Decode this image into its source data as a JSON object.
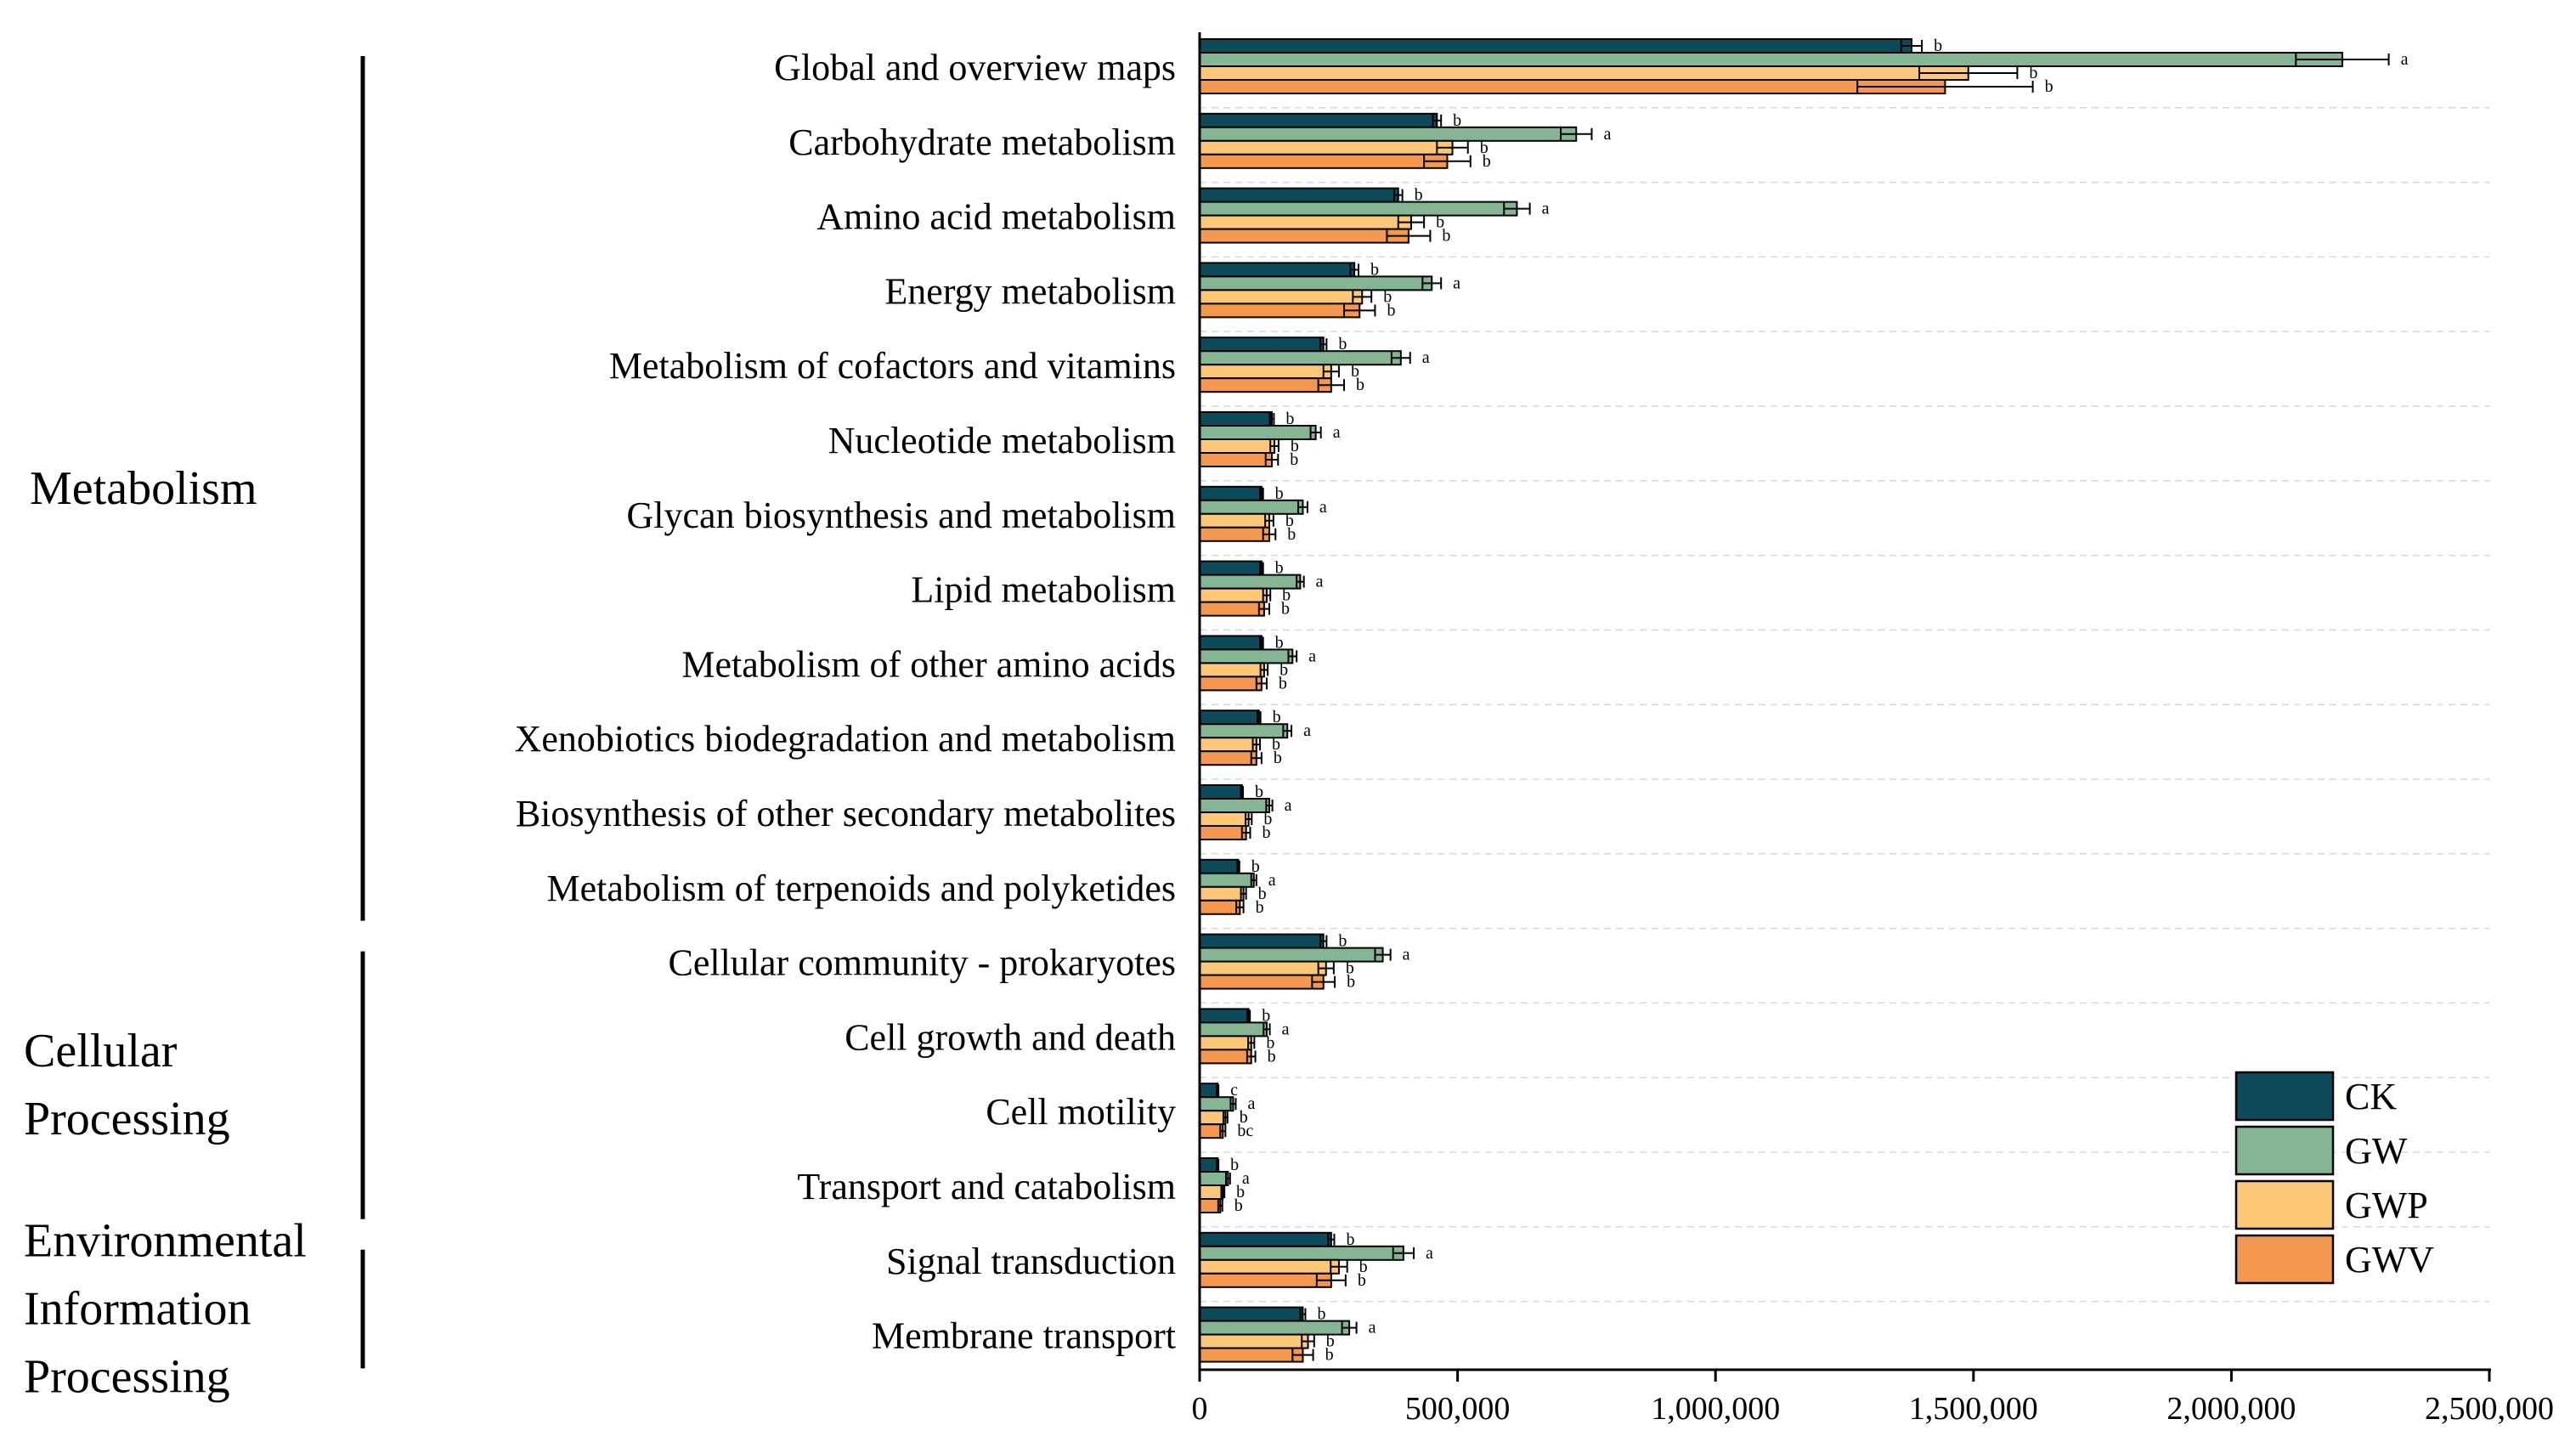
{
  "chart_data": {
    "type": "bar",
    "orientation": "horizontal",
    "xlim": [
      0,
      2500000
    ],
    "xticks": [
      "0",
      "500,000",
      "1,000,000",
      "1,500,000",
      "2,000,000",
      "2,500,000"
    ],
    "xtick_values": [
      0,
      500000,
      1000000,
      1500000,
      2000000,
      2500000
    ],
    "grid": true,
    "legend_position": "bottom-right",
    "colors": {
      "CK": "#0d4a5a",
      "GW": "#86b594",
      "GWP": "#fcc878",
      "GWV": "#f4984f"
    },
    "groups": [
      {
        "name": "Metabolism",
        "lines": [
          "Metabolism"
        ],
        "first": 0,
        "last": 11
      },
      {
        "name": "Cellular Processing",
        "lines": [
          "Cellular",
          "Processing"
        ],
        "first": 12,
        "last": 15
      },
      {
        "name": "Environmental Information Processing",
        "lines": [
          "Environmental",
          "Information",
          "Processing"
        ],
        "first": 16,
        "last": 17
      }
    ],
    "categories": [
      "Global and overview maps",
      "Carbohydrate metabolism",
      "Amino acid metabolism",
      "Energy metabolism",
      "Metabolism of cofactors and vitamins",
      "Nucleotide metabolism",
      "Glycan biosynthesis and metabolism",
      "Lipid metabolism",
      "Metabolism of other amino acids",
      "Xenobiotics biodegradation and metabolism",
      "Biosynthesis of other secondary metabolites",
      "Metabolism of terpenoids and polyketides",
      "Cellular community - prokaryotes",
      "Cell growth and death",
      "Cell motility",
      "Transport and catabolism",
      "Signal transduction",
      "Membrane transport"
    ],
    "series": [
      {
        "name": "CK",
        "values": [
          1380000,
          460000,
          385000,
          300000,
          240000,
          140000,
          120000,
          120000,
          120000,
          115000,
          82000,
          75000,
          240000,
          95000,
          35000,
          35000,
          255000,
          200000
        ],
        "errors": [
          20000,
          8000,
          8000,
          8000,
          6000,
          4000,
          3000,
          3000,
          3000,
          3000,
          2000,
          2000,
          6000,
          2500,
          1500,
          1500,
          6000,
          5000
        ],
        "sig": [
          "b",
          "b",
          "b",
          "b",
          "b",
          "b",
          "b",
          "b",
          "b",
          "b",
          "b",
          "b",
          "b",
          "b",
          "c",
          "b",
          "b",
          "b"
        ]
      },
      {
        "name": "GW",
        "values": [
          2215000,
          730000,
          615000,
          450000,
          390000,
          225000,
          200000,
          195000,
          180000,
          170000,
          135000,
          105000,
          355000,
          130000,
          65000,
          55000,
          395000,
          290000
        ],
        "errors": [
          90000,
          30000,
          25000,
          18000,
          18000,
          10000,
          9000,
          7000,
          8000,
          8000,
          6000,
          5000,
          15000,
          6000,
          5000,
          4000,
          20000,
          14000
        ],
        "sig": [
          "a",
          "a",
          "a",
          "a",
          "a",
          "a",
          "a",
          "a",
          "a",
          "a",
          "a",
          "a",
          "a",
          "a",
          "a",
          "a",
          "a",
          "a"
        ]
      },
      {
        "name": "GWP",
        "values": [
          1490000,
          490000,
          410000,
          315000,
          255000,
          145000,
          135000,
          130000,
          125000,
          110000,
          95000,
          85000,
          245000,
          100000,
          50000,
          45000,
          270000,
          210000
        ],
        "errors": [
          95000,
          30000,
          25000,
          18000,
          15000,
          8000,
          8000,
          7000,
          7000,
          7000,
          6000,
          5000,
          15000,
          6000,
          4000,
          3000,
          16000,
          12000
        ],
        "sig": [
          "b",
          "b",
          "b",
          "b",
          "b",
          "b",
          "b",
          "b",
          "b",
          "b",
          "b",
          "b",
          "b",
          "b",
          "b",
          "b",
          "b",
          "b"
        ]
      },
      {
        "name": "GWV",
        "values": [
          1445000,
          480000,
          405000,
          310000,
          255000,
          140000,
          135000,
          125000,
          120000,
          110000,
          90000,
          78000,
          240000,
          100000,
          45000,
          40000,
          255000,
          200000
        ],
        "errors": [
          170000,
          45000,
          42000,
          30000,
          25000,
          12000,
          12000,
          10000,
          10000,
          10000,
          8000,
          7000,
          22000,
          8000,
          5000,
          4000,
          28000,
          20000
        ],
        "sig": [
          "b",
          "b",
          "b",
          "b",
          "b",
          "b",
          "b",
          "b",
          "b",
          "b",
          "b",
          "b",
          "b",
          "b",
          "bc",
          "b",
          "b",
          "b"
        ]
      }
    ]
  }
}
